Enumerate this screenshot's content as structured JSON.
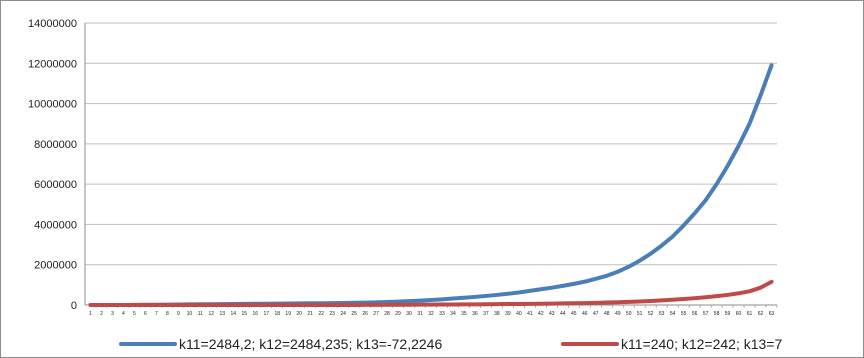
{
  "chart_data": {
    "type": "line",
    "title": "",
    "xlabel": "",
    "ylabel": "",
    "ylim": [
      0,
      14000000
    ],
    "yticks": [
      0,
      2000000,
      4000000,
      6000000,
      8000000,
      10000000,
      12000000,
      14000000
    ],
    "x": [
      1,
      2,
      3,
      4,
      5,
      6,
      7,
      8,
      9,
      10,
      11,
      12,
      13,
      14,
      15,
      16,
      17,
      18,
      19,
      20,
      21,
      22,
      23,
      24,
      25,
      26,
      27,
      28,
      29,
      30,
      31,
      32,
      33,
      34,
      35,
      36,
      37,
      38,
      39,
      40,
      41,
      42,
      43,
      44,
      45,
      46,
      47,
      48,
      49,
      50,
      51,
      52,
      53,
      54,
      55,
      56,
      57,
      58,
      59,
      60,
      61,
      62,
      63
    ],
    "grid": "y-major",
    "legend_position": "bottom",
    "series": [
      {
        "name": "k11=2484,2;  k12=2484,235; k13=-72,2246",
        "color": "#4a7ebb",
        "values": [
          0,
          0,
          0,
          0,
          5000,
          10000,
          15000,
          20000,
          25000,
          30000,
          35000,
          40000,
          45000,
          50000,
          55000,
          60000,
          65000,
          70000,
          75000,
          80000,
          85000,
          90000,
          95000,
          100000,
          110000,
          120000,
          130000,
          150000,
          170000,
          190000,
          220000,
          250000,
          280000,
          320000,
          360000,
          400000,
          450000,
          500000,
          560000,
          620000,
          700000,
          780000,
          860000,
          950000,
          1050000,
          1160000,
          1300000,
          1450000,
          1650000,
          1900000,
          2200000,
          2550000,
          2950000,
          3400000,
          3950000,
          4550000,
          5200000,
          6000000,
          6900000,
          7900000,
          9000000,
          10400000,
          11900000
        ]
      },
      {
        "name": "k11=240; k12=242; k13=7",
        "color": "#be4b48",
        "values": [
          0,
          0,
          0,
          0,
          0,
          0,
          0,
          0,
          0,
          0,
          0,
          0,
          0,
          0,
          0,
          0,
          0,
          0,
          0,
          0,
          0,
          0,
          0,
          0,
          0,
          5000,
          8000,
          10000,
          12000,
          15000,
          18000,
          20000,
          23000,
          26000,
          30000,
          34000,
          38000,
          42000,
          47000,
          52000,
          58000,
          64000,
          70000,
          78000,
          86000,
          96000,
          108000,
          122000,
          138000,
          156000,
          176000,
          200000,
          228000,
          260000,
          296000,
          338000,
          386000,
          440000,
          500000,
          580000,
          680000,
          860000,
          1150000
        ]
      }
    ]
  }
}
